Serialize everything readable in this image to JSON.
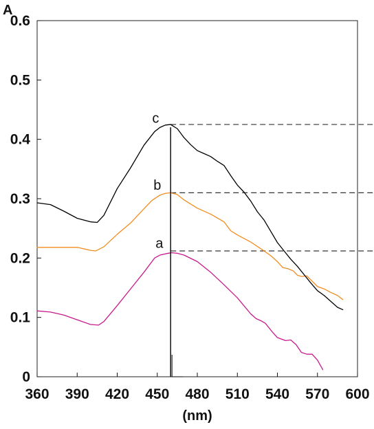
{
  "chart_data": {
    "type": "line",
    "title": "",
    "xlabel": "(nm)",
    "ylabel": "A",
    "xlim": [
      360,
      600
    ],
    "ylim": [
      0,
      0.6
    ],
    "x_ticks": [
      360,
      390,
      420,
      450,
      480,
      510,
      540,
      570,
      600
    ],
    "y_ticks": [
      0,
      0.1,
      0.2,
      0.3,
      0.4,
      0.5,
      0.6
    ],
    "x_tick_labels": [
      "360",
      "390",
      "420",
      "450",
      "480",
      "510",
      "540",
      "570",
      "600"
    ],
    "y_tick_labels": [
      "0",
      "0.1",
      "0.2",
      "0.3",
      "0.4",
      "0.5",
      "0.6"
    ],
    "grid": false,
    "legend": "none",
    "peak_wavelength": 460,
    "series": [
      {
        "name": "a",
        "color": "#c8198c",
        "points": [
          [
            360,
            0.111
          ],
          [
            370,
            0.109
          ],
          [
            380,
            0.104
          ],
          [
            390,
            0.096
          ],
          [
            400,
            0.088
          ],
          [
            406,
            0.087
          ],
          [
            410,
            0.093
          ],
          [
            420,
            0.12
          ],
          [
            430,
            0.148
          ],
          [
            440,
            0.176
          ],
          [
            448,
            0.2
          ],
          [
            452,
            0.205
          ],
          [
            458,
            0.208
          ],
          [
            461,
            0.209
          ],
          [
            465,
            0.208
          ],
          [
            470,
            0.205
          ],
          [
            480,
            0.194
          ],
          [
            490,
            0.176
          ],
          [
            500,
            0.155
          ],
          [
            510,
            0.133
          ],
          [
            520,
            0.106
          ],
          [
            524,
            0.098
          ],
          [
            528,
            0.094
          ],
          [
            531,
            0.09
          ],
          [
            536,
            0.076
          ],
          [
            540,
            0.066
          ],
          [
            546,
            0.061
          ],
          [
            550,
            0.062
          ],
          [
            554,
            0.054
          ],
          [
            558,
            0.041
          ],
          [
            562,
            0.038
          ],
          [
            566,
            0.038
          ],
          [
            570,
            0.028
          ],
          [
            574,
            0.012
          ]
        ]
      },
      {
        "name": "b",
        "color": "#f28c1e",
        "points": [
          [
            360,
            0.218
          ],
          [
            370,
            0.218
          ],
          [
            380,
            0.218
          ],
          [
            390,
            0.218
          ],
          [
            400,
            0.213
          ],
          [
            404,
            0.212
          ],
          [
            410,
            0.219
          ],
          [
            420,
            0.24
          ],
          [
            430,
            0.259
          ],
          [
            440,
            0.283
          ],
          [
            446,
            0.297
          ],
          [
            452,
            0.306
          ],
          [
            456,
            0.309
          ],
          [
            460,
            0.31
          ],
          [
            465,
            0.307
          ],
          [
            470,
            0.298
          ],
          [
            480,
            0.284
          ],
          [
            490,
            0.274
          ],
          [
            500,
            0.261
          ],
          [
            505,
            0.246
          ],
          [
            510,
            0.239
          ],
          [
            520,
            0.227
          ],
          [
            530,
            0.212
          ],
          [
            535,
            0.204
          ],
          [
            540,
            0.194
          ],
          [
            544,
            0.184
          ],
          [
            548,
            0.182
          ],
          [
            552,
            0.178
          ],
          [
            555,
            0.171
          ],
          [
            558,
            0.169
          ],
          [
            562,
            0.17
          ],
          [
            566,
            0.161
          ],
          [
            570,
            0.152
          ],
          [
            575,
            0.148
          ],
          [
            580,
            0.142
          ],
          [
            585,
            0.137
          ],
          [
            589,
            0.13
          ]
        ]
      },
      {
        "name": "c",
        "color": "#000000",
        "points": [
          [
            360,
            0.293
          ],
          [
            370,
            0.29
          ],
          [
            380,
            0.279
          ],
          [
            390,
            0.267
          ],
          [
            400,
            0.261
          ],
          [
            405,
            0.26
          ],
          [
            410,
            0.272
          ],
          [
            420,
            0.317
          ],
          [
            430,
            0.352
          ],
          [
            440,
            0.39
          ],
          [
            448,
            0.413
          ],
          [
            452,
            0.42
          ],
          [
            456,
            0.424
          ],
          [
            460,
            0.425
          ],
          [
            465,
            0.418
          ],
          [
            470,
            0.403
          ],
          [
            475,
            0.391
          ],
          [
            480,
            0.381
          ],
          [
            485,
            0.376
          ],
          [
            490,
            0.371
          ],
          [
            495,
            0.363
          ],
          [
            500,
            0.356
          ],
          [
            505,
            0.339
          ],
          [
            510,
            0.323
          ],
          [
            515,
            0.311
          ],
          [
            520,
            0.296
          ],
          [
            525,
            0.278
          ],
          [
            530,
            0.264
          ],
          [
            535,
            0.245
          ],
          [
            540,
            0.226
          ],
          [
            545,
            0.212
          ],
          [
            550,
            0.198
          ],
          [
            555,
            0.186
          ],
          [
            560,
            0.172
          ],
          [
            565,
            0.158
          ],
          [
            570,
            0.145
          ],
          [
            575,
            0.137
          ],
          [
            580,
            0.127
          ],
          [
            585,
            0.117
          ],
          [
            589,
            0.113
          ]
        ]
      }
    ],
    "curve_labels": [
      {
        "text": "a",
        "x": 459.5,
        "y": 0.223
      },
      {
        "text": "b",
        "x": 458,
        "y": 0.321
      },
      {
        "text": "c",
        "x": 457,
        "y": 0.434
      }
    ],
    "reference_lines": [
      {
        "type": "dashed-horizontal",
        "y": 0.212,
        "x_from": 460
      },
      {
        "type": "dashed-horizontal",
        "y": 0.31,
        "x_from": 460
      },
      {
        "type": "dashed-horizontal",
        "y": 0.425,
        "x_from": 460
      }
    ]
  }
}
